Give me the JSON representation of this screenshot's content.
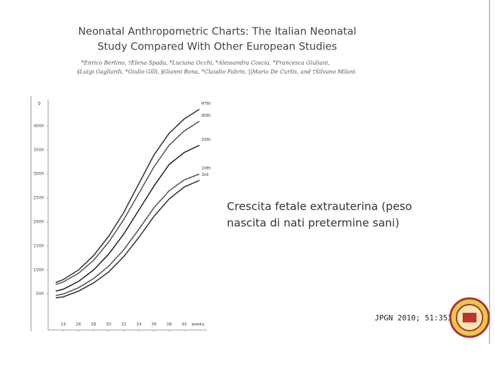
{
  "slide": {
    "title_lines": [
      "Neonatal Anthropometric Charts: The Italian Neonatal",
      "Study Compared With Other European Studies"
    ],
    "author_lines": [
      "*Enrico Bertino, †Elena Spada, *Luciana Occhi, *Alessandra Coscia, *Francesca Giuliani,",
      "§Luigi Gagliardi, *Giulio Gilli, §Gianni Bona, *Claudio Fabris, ||Mario De Curtis, and †Silvano Milani"
    ],
    "caption_lines": [
      "Crescita fetale extrauterina (peso",
      "nascita di nati pretermine sani)"
    ],
    "citation": "JPGN 2010; 51:353"
  },
  "chart_data": {
    "type": "line",
    "y_unit": "g",
    "x_unit": "weeks",
    "x": [
      23,
      24,
      26,
      28,
      30,
      32,
      34,
      36,
      38,
      40,
      42
    ],
    "xlim": [
      22,
      43
    ],
    "xticks": [
      24,
      26,
      28,
      30,
      32,
      34,
      36,
      38,
      40
    ],
    "ylim": [
      -250,
      4550
    ],
    "yticks": [
      500,
      1000,
      1500,
      2000,
      2500,
      3000,
      3500,
      4000
    ],
    "series": [
      {
        "name": "97th",
        "color": "#333333",
        "values": [
          740,
          800,
          1000,
          1300,
          1700,
          2200,
          2800,
          3400,
          3850,
          4150,
          4350
        ]
      },
      {
        "name": "90th",
        "color": "#555555",
        "values": [
          700,
          750,
          930,
          1200,
          1580,
          2050,
          2600,
          3150,
          3600,
          3900,
          4100
        ]
      },
      {
        "name": "50th",
        "color": "#222222",
        "values": [
          560,
          600,
          760,
          1000,
          1330,
          1750,
          2250,
          2750,
          3200,
          3450,
          3600
        ]
      },
      {
        "name": "10th",
        "color": "#555555",
        "values": [
          470,
          500,
          630,
          820,
          1080,
          1420,
          1850,
          2300,
          2650,
          2880,
          3000
        ]
      },
      {
        "name": "3rd",
        "color": "#333333",
        "values": [
          420,
          440,
          560,
          730,
          960,
          1280,
          1680,
          2120,
          2480,
          2730,
          2870
        ]
      }
    ]
  }
}
